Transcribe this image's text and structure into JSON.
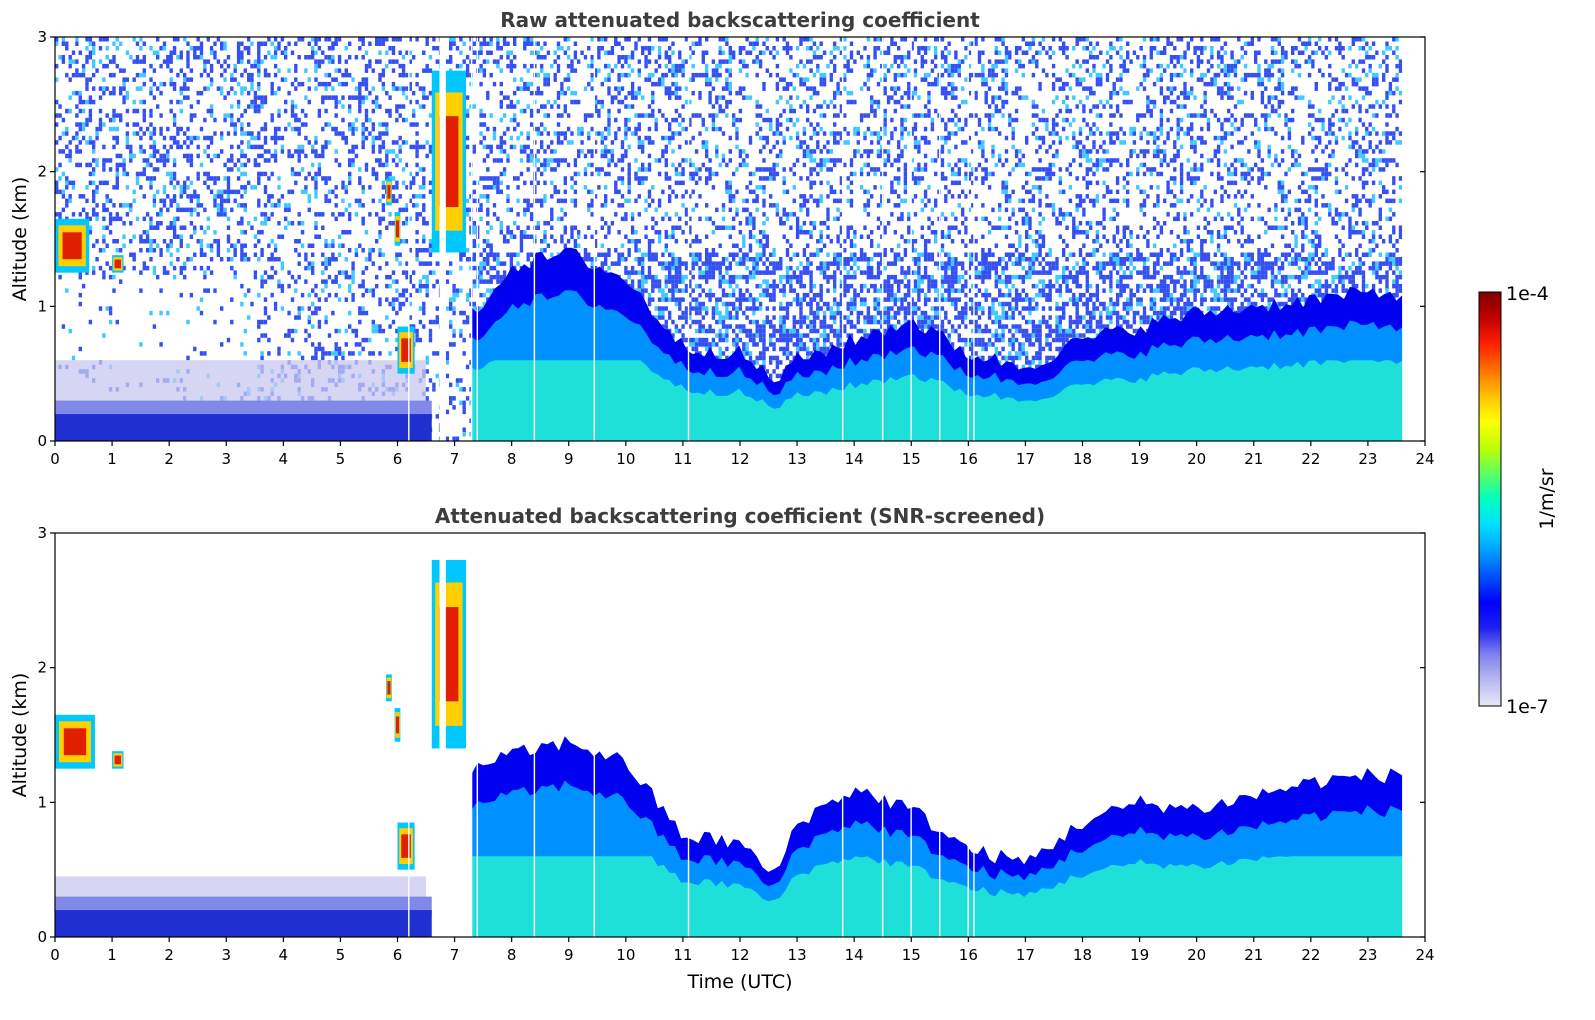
{
  "chart_data": [
    {
      "type": "heatmap",
      "title": "Raw attenuated backscattering coefficient",
      "xlabel": "",
      "ylabel": "Altitude (km)",
      "xlim": [
        0,
        24
      ],
      "ylim": [
        0,
        3
      ],
      "xticks": [
        "0",
        "1",
        "2",
        "3",
        "4",
        "5",
        "6",
        "7",
        "8",
        "9",
        "10",
        "11",
        "12",
        "13",
        "14",
        "15",
        "16",
        "17",
        "18",
        "19",
        "20",
        "21",
        "22",
        "23",
        "24"
      ],
      "yticks": [
        "0",
        "1",
        "2",
        "3"
      ],
      "data_end_hour": 23.6,
      "boundary_layer_top_km": {
        "hours": [
          0,
          2,
          4,
          6,
          8,
          9,
          10,
          11,
          12,
          12.6,
          13,
          14,
          15,
          16,
          17,
          18,
          19,
          20,
          21,
          22,
          23,
          23.6
        ],
        "values": [
          0.2,
          0.2,
          0.2,
          0.25,
          1.3,
          1.4,
          1.2,
          0.7,
          0.65,
          0.45,
          0.6,
          0.75,
          0.9,
          0.65,
          0.55,
          0.75,
          0.85,
          0.95,
          1.0,
          1.05,
          1.1,
          1.1
        ]
      },
      "cloud_features": [
        {
          "start_hour": 0.0,
          "end_hour": 0.6,
          "base_km": 1.25,
          "top_km": 1.65
        },
        {
          "start_hour": 1.0,
          "end_hour": 1.2,
          "base_km": 1.25,
          "top_km": 1.38
        },
        {
          "start_hour": 5.8,
          "end_hour": 5.9,
          "base_km": 1.75,
          "top_km": 1.95
        },
        {
          "start_hour": 5.95,
          "end_hour": 6.05,
          "base_km": 1.45,
          "top_km": 1.7
        },
        {
          "start_hour": 6.0,
          "end_hour": 6.3,
          "base_km": 0.5,
          "top_km": 0.85
        },
        {
          "start_hour": 6.6,
          "end_hour": 7.2,
          "base_km": 1.4,
          "top_km": 2.75
        }
      ]
    },
    {
      "type": "heatmap",
      "title": "Attenuated backscattering coefficient (SNR-screened)",
      "xlabel": "Time (UTC)",
      "ylabel": "Altitude (km)",
      "xlim": [
        0,
        24
      ],
      "ylim": [
        0,
        3
      ],
      "xticks": [
        "0",
        "1",
        "2",
        "3",
        "4",
        "5",
        "6",
        "7",
        "8",
        "9",
        "10",
        "11",
        "12",
        "13",
        "14",
        "15",
        "16",
        "17",
        "18",
        "19",
        "20",
        "21",
        "22",
        "23",
        "24"
      ],
      "yticks": [
        "0",
        "1",
        "2",
        "3"
      ],
      "data_end_hour": 23.6,
      "boundary_layer_top_km": {
        "hours": [
          0,
          2,
          4,
          6,
          7.5,
          8,
          9,
          10,
          11,
          12,
          12.6,
          13,
          14,
          15,
          16,
          17,
          18,
          19,
          20,
          21,
          22,
          23,
          23.6
        ],
        "values": [
          0.45,
          0.45,
          0.42,
          0.4,
          1.3,
          1.35,
          1.45,
          1.3,
          0.75,
          0.7,
          0.45,
          0.85,
          1.1,
          0.95,
          0.65,
          0.55,
          0.85,
          1.0,
          0.95,
          1.05,
          1.15,
          1.2,
          1.2
        ]
      },
      "cloud_features": [
        {
          "start_hour": 0.0,
          "end_hour": 0.7,
          "base_km": 1.25,
          "top_km": 1.65
        },
        {
          "start_hour": 1.0,
          "end_hour": 1.2,
          "base_km": 1.25,
          "top_km": 1.38
        },
        {
          "start_hour": 5.8,
          "end_hour": 5.9,
          "base_km": 1.75,
          "top_km": 1.95
        },
        {
          "start_hour": 5.95,
          "end_hour": 6.05,
          "base_km": 1.45,
          "top_km": 1.7
        },
        {
          "start_hour": 6.0,
          "end_hour": 6.3,
          "base_km": 0.5,
          "top_km": 0.85
        },
        {
          "start_hour": 6.6,
          "end_hour": 7.2,
          "base_km": 1.4,
          "top_km": 2.8
        }
      ]
    }
  ],
  "colorbar": {
    "label": "1/m/sr",
    "min_label": "1e-7",
    "max_label": "1e-4",
    "colors": [
      "#e8e8f8",
      "#b8b8f0",
      "#8080f0",
      "#2020f0",
      "#0000ff",
      "#0050ff",
      "#00a0ff",
      "#00e0ff",
      "#00ffc0",
      "#60ff60",
      "#c0ff00",
      "#ffff00",
      "#ffc000",
      "#ff7000",
      "#ff2000",
      "#c00000",
      "#800000"
    ]
  },
  "colors": {
    "axes": "#000000",
    "title": "#3d3d3d",
    "pbl_strong": "#1fe0d8",
    "pbl_mid": "#0090ff",
    "pbl_edge": "#0000f0",
    "noise_blue": "#1030f0",
    "noise_cyan": "#20c0ff",
    "night_layer": "#2030d0",
    "haze": "#c8c8f0"
  }
}
